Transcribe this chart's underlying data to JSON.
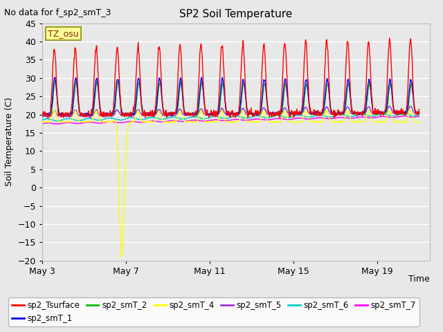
{
  "title": "SP2 Soil Temperature",
  "subtitle": "No data for f_sp2_smT_3",
  "ylabel": "Soil Temperature (C)",
  "xlabel": "Time",
  "ylim": [
    -20,
    45
  ],
  "yticks": [
    -20,
    -15,
    -10,
    -5,
    0,
    5,
    10,
    15,
    20,
    25,
    30,
    35,
    40,
    45
  ],
  "xtick_labels": [
    "May 3",
    "May 7",
    "May 11",
    "May 15",
    "May 19"
  ],
  "xtick_positions": [
    2,
    6,
    10,
    14,
    18
  ],
  "plot_bg_color": "#e8e8e8",
  "legend_items": [
    {
      "label": "sp2_Tsurface",
      "color": "#ff0000"
    },
    {
      "label": "sp2_smT_1",
      "color": "#0000ff"
    },
    {
      "label": "sp2_smT_2",
      "color": "#00bb00"
    },
    {
      "label": "sp2_smT_4",
      "color": "#ffff00"
    },
    {
      "label": "sp2_smT_5",
      "color": "#9933cc"
    },
    {
      "label": "sp2_smT_6",
      "color": "#00cccc"
    },
    {
      "label": "sp2_smT_7",
      "color": "#ff00ff"
    }
  ],
  "tz_label": "TZ_osu",
  "figsize": [
    6.4,
    4.8
  ],
  "dpi": 100
}
